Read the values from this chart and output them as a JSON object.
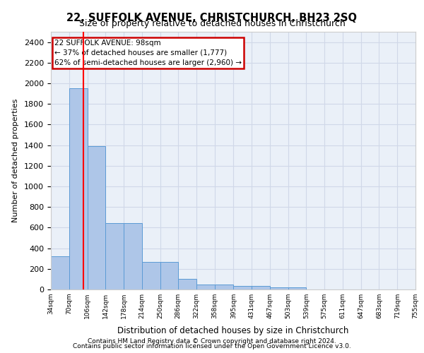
{
  "title_line1": "22, SUFFOLK AVENUE, CHRISTCHURCH, BH23 2SQ",
  "title_line2": "Size of property relative to detached houses in Christchurch",
  "xlabel": "Distribution of detached houses by size in Christchurch",
  "ylabel": "Number of detached properties",
  "footnote1": "Contains HM Land Registry data © Crown copyright and database right 2024.",
  "footnote2": "Contains public sector information licensed under the Open Government Licence v3.0.",
  "annotation_title": "22 SUFFOLK AVENUE: 98sqm",
  "annotation_line1": "← 37% of detached houses are smaller (1,777)",
  "annotation_line2": "62% of semi-detached houses are larger (2,960) →",
  "subject_sqm": 98,
  "bar_edges": [
    34,
    70,
    106,
    142,
    178,
    214,
    250,
    286,
    322,
    358,
    395,
    431,
    467,
    503,
    539,
    575,
    611,
    647,
    683,
    719,
    755
  ],
  "bar_heights": [
    325,
    1950,
    1390,
    643,
    643,
    270,
    270,
    100,
    47,
    47,
    35,
    35,
    20,
    20,
    0,
    0,
    0,
    0,
    0,
    0
  ],
  "bar_color": "#aec6e8",
  "bar_edgecolor": "#5b9bd5",
  "redline_x": 98,
  "ylim": [
    0,
    2500
  ],
  "yticks": [
    0,
    200,
    400,
    600,
    800,
    1000,
    1200,
    1400,
    1600,
    1800,
    2000,
    2200,
    2400
  ],
  "grid_color": "#d0d8e8",
  "bg_color": "#eaf0f8",
  "annotation_box_color": "#cc0000",
  "fig_bg": "#ffffff"
}
